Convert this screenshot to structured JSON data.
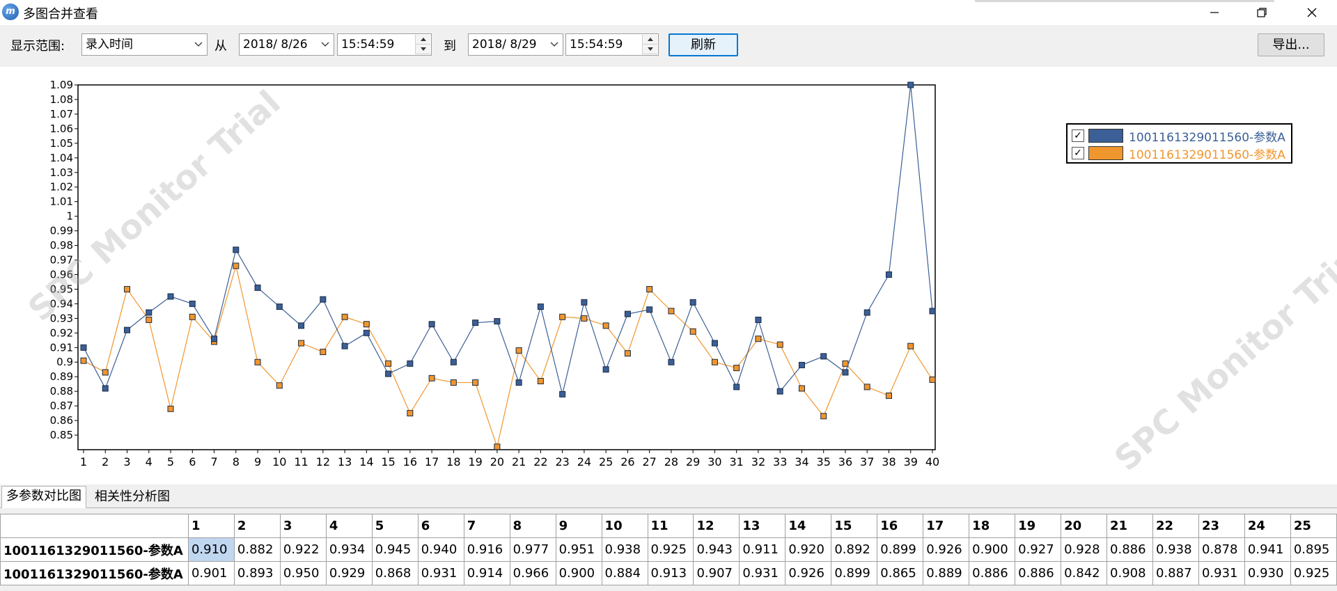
{
  "window": {
    "title": "多图合并查看",
    "icon": "app-logo-icon",
    "controls": [
      "minimize-icon",
      "restore-icon",
      "close-icon"
    ]
  },
  "toolbar": {
    "range_label": "显示范围:",
    "range_value": "录入时间",
    "from_label": "从",
    "from_date": "2018/ 8/26",
    "from_time": "15:54:59",
    "to_label": "到",
    "to_date": "2018/ 8/29",
    "to_time": "15:54:59",
    "refresh_label": "刷新",
    "export_label": "导出..."
  },
  "watermark": "SPC Monitor Trial",
  "chart_data": {
    "type": "line",
    "x": [
      1,
      2,
      3,
      4,
      5,
      6,
      7,
      8,
      9,
      10,
      11,
      12,
      13,
      14,
      15,
      16,
      17,
      18,
      19,
      20,
      21,
      22,
      23,
      24,
      25,
      26,
      27,
      28,
      29,
      30,
      31,
      32,
      33,
      34,
      35,
      36,
      37,
      38,
      39,
      40
    ],
    "ylim": [
      0.84,
      1.09
    ],
    "yticks": [
      0.85,
      0.86,
      0.87,
      0.88,
      0.89,
      0.9,
      0.91,
      0.92,
      0.93,
      0.94,
      0.95,
      0.96,
      0.97,
      0.98,
      0.99,
      1,
      1.01,
      1.02,
      1.03,
      1.04,
      1.05,
      1.06,
      1.07,
      1.08,
      1.09
    ],
    "ytick_labels": [
      "0.85",
      "0.86",
      "0.87",
      "0.88",
      "0.89",
      "0.9",
      "0.91",
      "0.92",
      "0.93",
      "0.94",
      "0.95",
      "0.96",
      "0.97",
      "0.98",
      "0.99",
      "1",
      "1.01",
      "1.02",
      "1.03",
      "1.04",
      "1.05",
      "1.06",
      "1.07",
      "1.08",
      "1.09"
    ],
    "series": [
      {
        "name": "1001161329011560-参数A",
        "color": "#3b5f96",
        "values": [
          0.91,
          0.882,
          0.922,
          0.934,
          0.945,
          0.94,
          0.916,
          0.977,
          0.951,
          0.938,
          0.925,
          0.943,
          0.911,
          0.92,
          0.892,
          0.899,
          0.926,
          0.9,
          0.927,
          0.928,
          0.886,
          0.938,
          0.878,
          0.941,
          0.895,
          0.933,
          0.936,
          0.9,
          0.941,
          0.913,
          0.883,
          0.929,
          0.88,
          0.898,
          0.904,
          0.893,
          0.934,
          0.96,
          1.09,
          0.935
        ]
      },
      {
        "name": "1001161329011560-参数A",
        "color": "#f0962e",
        "values": [
          0.901,
          0.893,
          0.95,
          0.929,
          0.868,
          0.931,
          0.914,
          0.966,
          0.9,
          0.884,
          0.913,
          0.907,
          0.931,
          0.926,
          0.899,
          0.865,
          0.889,
          0.886,
          0.886,
          0.842,
          0.908,
          0.887,
          0.931,
          0.93,
          0.925,
          0.906,
          0.95,
          0.935,
          0.921,
          0.9,
          0.896,
          0.916,
          0.912,
          0.882,
          0.863,
          0.899,
          0.883,
          0.877,
          0.911,
          0.888
        ]
      }
    ],
    "legend": "top-right",
    "grid": false
  },
  "tabs": [
    "多参数对比图",
    "相关性分析图"
  ],
  "table": {
    "columns": [
      "1",
      "2",
      "3",
      "4",
      "5",
      "6",
      "7",
      "8",
      "9",
      "10",
      "11",
      "12",
      "13",
      "14",
      "15",
      "16",
      "17",
      "18",
      "19",
      "20",
      "21",
      "22",
      "23",
      "24",
      "25"
    ],
    "rows": [
      {
        "label": "1001161329011560-参数A",
        "values": [
          "0.910",
          "0.882",
          "0.922",
          "0.934",
          "0.945",
          "0.940",
          "0.916",
          "0.977",
          "0.951",
          "0.938",
          "0.925",
          "0.943",
          "0.911",
          "0.920",
          "0.892",
          "0.899",
          "0.926",
          "0.900",
          "0.927",
          "0.928",
          "0.886",
          "0.938",
          "0.878",
          "0.941",
          "0.895"
        ]
      },
      {
        "label": "1001161329011560-参数A",
        "values": [
          "0.901",
          "0.893",
          "0.950",
          "0.929",
          "0.868",
          "0.931",
          "0.914",
          "0.966",
          "0.900",
          "0.884",
          "0.913",
          "0.907",
          "0.931",
          "0.926",
          "0.899",
          "0.865",
          "0.889",
          "0.886",
          "0.886",
          "0.842",
          "0.908",
          "0.887",
          "0.931",
          "0.930",
          "0.925"
        ]
      }
    ]
  }
}
